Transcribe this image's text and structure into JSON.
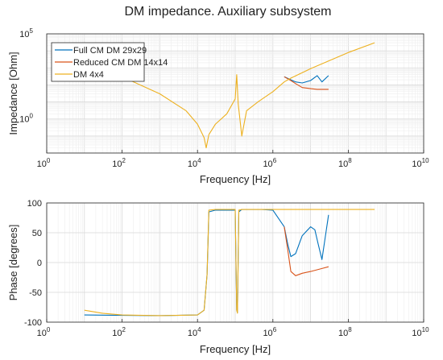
{
  "title": "DM impedance. Auxiliary subsystem",
  "colors": {
    "full": "#0072BD",
    "reduced": "#D95319",
    "dm": "#EDB120"
  },
  "chart_data": [
    {
      "type": "line",
      "xscale": "log",
      "yscale": "log",
      "xlabel": "Frequency [Hz]",
      "ylabel": "Impedance [Ohm]",
      "xlim": [
        1,
        10000000000
      ],
      "ylim": [
        0.01,
        100000
      ],
      "grid": true,
      "legend_position": "top-left",
      "xticks": [
        {
          "base": "10",
          "exp": "0"
        },
        {
          "base": "10",
          "exp": "2"
        },
        {
          "base": "10",
          "exp": "4"
        },
        {
          "base": "10",
          "exp": "6"
        },
        {
          "base": "10",
          "exp": "8"
        },
        {
          "base": "10",
          "exp": "10"
        }
      ],
      "yticks": [
        {
          "base": "10",
          "exp": "0"
        },
        {
          "base": "10",
          "exp": "5"
        }
      ],
      "series": [
        {
          "name": "Full CM DM 29x29",
          "x": [
            2000000,
            3000000,
            4000000,
            6000000,
            10000000,
            15000000,
            20000000,
            30000000
          ],
          "y": [
            300,
            200,
            150,
            130,
            180,
            350,
            150,
            350
          ]
        },
        {
          "name": "Reduced CM DM 14x14",
          "x": [
            2000000,
            3000000,
            4000000,
            6000000,
            10000000,
            15000000,
            20000000,
            30000000
          ],
          "y": [
            300,
            180,
            120,
            70,
            60,
            55,
            55,
            55
          ]
        },
        {
          "name": "DM 4x4",
          "x": [
            10,
            100,
            1000,
            5000,
            10000,
            15000,
            17000,
            20000,
            30000,
            60000,
            100000,
            110000,
            120000,
            150000,
            200000,
            400000,
            1000000,
            2000000,
            3000000,
            10000000,
            100000000,
            500000000
          ],
          "y": [
            3000,
            300,
            30,
            3,
            0.5,
            0.08,
            0.02,
            0.12,
            0.5,
            2,
            15,
            400,
            8,
            0.1,
            3,
            10,
            40,
            150,
            250,
            900,
            8000,
            30000
          ]
        }
      ]
    },
    {
      "type": "line",
      "xscale": "log",
      "xlabel": "Frequency [Hz]",
      "ylabel": "Phase [degrees]",
      "xlim": [
        1,
        10000000000
      ],
      "ylim": [
        -100,
        100
      ],
      "grid": true,
      "xticks": [
        {
          "base": "10",
          "exp": "0"
        },
        {
          "base": "10",
          "exp": "2"
        },
        {
          "base": "10",
          "exp": "4"
        },
        {
          "base": "10",
          "exp": "6"
        },
        {
          "base": "10",
          "exp": "8"
        },
        {
          "base": "10",
          "exp": "10"
        }
      ],
      "yticks": [
        "100",
        "50",
        "0",
        "-50",
        "-100"
      ],
      "series": [
        {
          "name": "Full CM DM 29x29",
          "x": [
            10,
            1000,
            10000,
            15000,
            18000,
            20000,
            30000,
            100000,
            110000,
            115000,
            125000,
            150000,
            500000,
            1000000,
            2000000,
            2500000,
            3000000,
            4000000,
            6000000,
            10000000,
            13000000,
            16000000,
            20000000,
            30000000
          ],
          "y": [
            -88,
            -89,
            -88,
            -80,
            -20,
            85,
            88,
            88,
            -80,
            -84,
            85,
            89,
            89,
            88,
            60,
            30,
            10,
            15,
            45,
            60,
            55,
            30,
            5,
            80
          ]
        },
        {
          "name": "Reduced CM DM 14x14",
          "x": [
            2000000,
            2500000,
            3000000,
            4000000,
            6000000,
            10000000,
            20000000,
            30000000
          ],
          "y": [
            60,
            20,
            -15,
            -22,
            -18,
            -15,
            -10,
            -7
          ]
        },
        {
          "name": "DM 4x4",
          "x": [
            10,
            30,
            100,
            1000,
            10000,
            15000,
            18000,
            20000,
            30000,
            100000,
            110000,
            115000,
            125000,
            150000,
            500000,
            1000000,
            2000000,
            10000000,
            100000000,
            500000000
          ],
          "y": [
            -80,
            -85,
            -88,
            -89,
            -88,
            -80,
            -20,
            88,
            89,
            89,
            -80,
            -85,
            88,
            89,
            89,
            89,
            89,
            89,
            89,
            89
          ]
        }
      ]
    }
  ]
}
